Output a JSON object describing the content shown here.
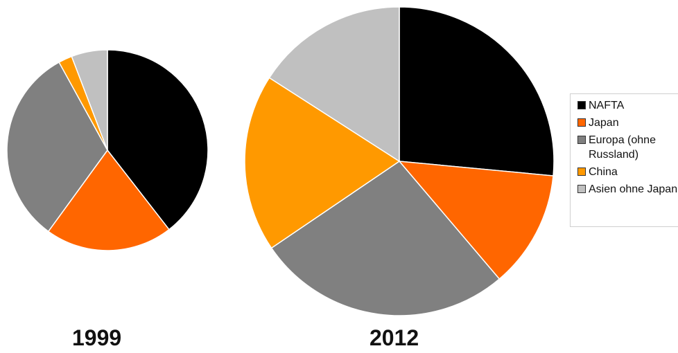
{
  "chart_data": [
    {
      "type": "pie",
      "title": "1999",
      "categories": [
        "NAFTA",
        "Japan",
        "Europa (ohne Russland)",
        "China",
        "Asien ohne Japan"
      ],
      "values": [
        39.5,
        20.5,
        32.0,
        2.2,
        5.8
      ]
    },
    {
      "type": "pie",
      "title": "2012",
      "categories": [
        "NAFTA",
        "Japan",
        "Europa (ohne Russland)",
        "China",
        "Asien ohne Japan"
      ],
      "values": [
        26.5,
        12.3,
        26.7,
        18.6,
        15.9
      ]
    }
  ],
  "legend": {
    "items": [
      {
        "label": "NAFTA",
        "color": "#000000"
      },
      {
        "label": "Japan",
        "color": "#ff6600"
      },
      {
        "label": "Europa (ohne Russland)",
        "color": "#808080"
      },
      {
        "label": "China",
        "color": "#ff9900"
      },
      {
        "label": "Asien ohne Japan",
        "color": "#c0c0c0"
      }
    ]
  },
  "colors": [
    "#000000",
    "#ff6600",
    "#808080",
    "#ff9900",
    "#c0c0c0"
  ]
}
